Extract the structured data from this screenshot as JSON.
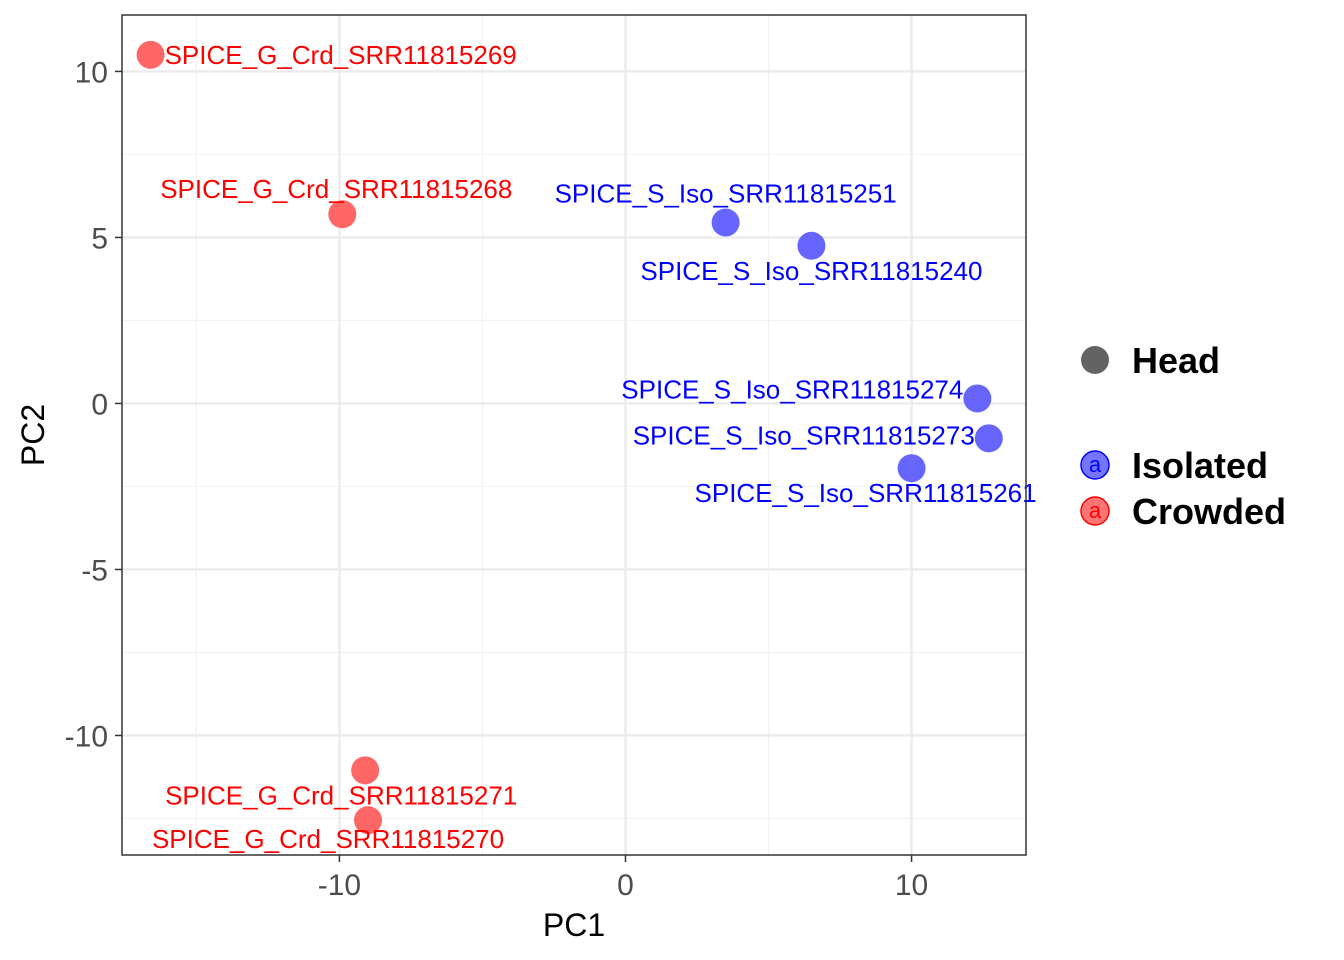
{
  "chart_data": {
    "type": "scatter",
    "xlabel": "PC1",
    "ylabel": "PC2",
    "xlim": [
      -17.6,
      14.0
    ],
    "ylim": [
      -13.6,
      11.7
    ],
    "x_ticks": [
      -10,
      0,
      10
    ],
    "x_tick_labels": [
      "-10",
      "0",
      "10"
    ],
    "y_ticks": [
      -10,
      -5,
      0,
      5,
      10
    ],
    "y_tick_labels": [
      "-10",
      "-5",
      "0",
      "5",
      "10"
    ],
    "grid": true,
    "legend_position": "right",
    "legend": {
      "shape_entries": [
        {
          "label": "Head",
          "color": "#636363"
        }
      ],
      "color_entries": [
        {
          "label": "Isolated",
          "color": "#6666ff",
          "letter": "a",
          "letter_color": "#0000ff"
        },
        {
          "label": "Crowded",
          "color": "#ff6666",
          "letter": "a",
          "letter_color": "#ff0000"
        }
      ]
    },
    "series": [
      {
        "name": "Isolated",
        "color": "#6666ff",
        "label_color": "#0000ff",
        "points": [
          {
            "label": "SPICE_S_Iso_SRR11815251",
            "x": 3.5,
            "y": 5.45
          },
          {
            "label": "SPICE_S_Iso_SRR11815240",
            "x": 6.5,
            "y": 4.75
          },
          {
            "label": "SPICE_S_Iso_SRR11815274",
            "x": 12.3,
            "y": 0.15
          },
          {
            "label": "SPICE_S_Iso_SRR11815273",
            "x": 12.7,
            "y": -1.05
          },
          {
            "label": "SPICE_S_Iso_SRR11815261",
            "x": 10.0,
            "y": -1.95
          }
        ]
      },
      {
        "name": "Crowded",
        "color": "#ff6666",
        "label_color": "#ff0000",
        "points": [
          {
            "label": "SPICE_G_Crd_SRR11815269",
            "x": -16.6,
            "y": 10.5
          },
          {
            "label": "SPICE_G_Crd_SRR11815268",
            "x": -9.9,
            "y": 5.7
          },
          {
            "label": "SPICE_G_Crd_SRR11815271",
            "x": -9.1,
            "y": -11.05
          },
          {
            "label": "SPICE_G_Crd_SRR11815270",
            "x": -9.0,
            "y": -12.55
          }
        ]
      }
    ]
  }
}
